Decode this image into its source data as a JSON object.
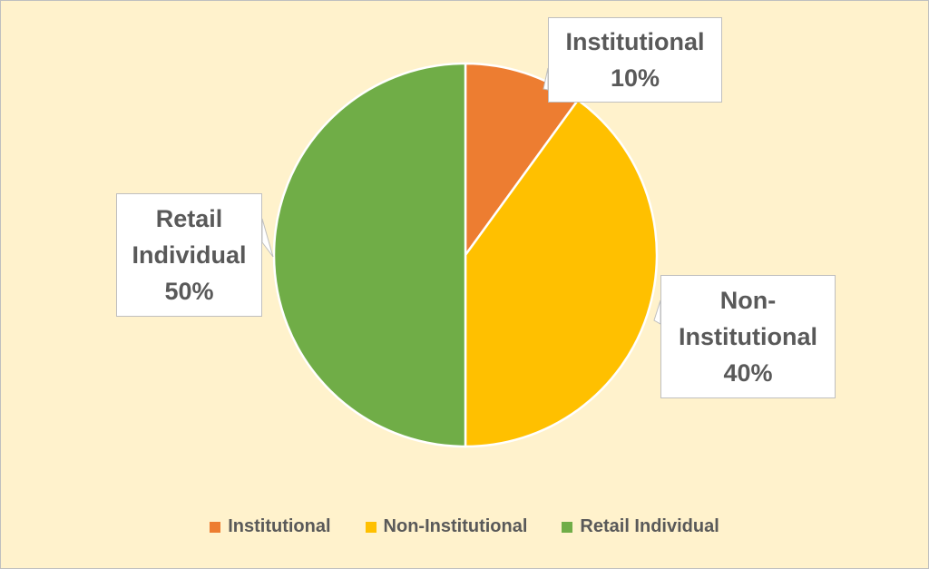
{
  "chart_data": {
    "type": "pie",
    "categories": [
      "Institutional",
      "Non-Institutional",
      "Retail Individual"
    ],
    "values": [
      10,
      40,
      50
    ],
    "value_labels": [
      "10%",
      "40%",
      "50%"
    ],
    "colors": [
      "#ED7D31",
      "#FFC000",
      "#70AD47"
    ],
    "legend": "bottom"
  }
}
